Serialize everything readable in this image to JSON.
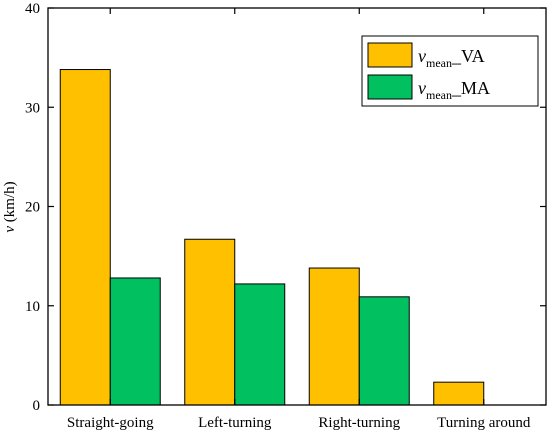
{
  "chart_data": {
    "type": "bar",
    "categories": [
      "Straight-going",
      "Left-turning",
      "Right-turning",
      "Turning around"
    ],
    "series": [
      {
        "name_main": "v",
        "name_sub": "mean",
        "name_suffix": "_VA",
        "color": "#FFC000",
        "values": [
          33.8,
          16.7,
          13.8,
          2.3
        ]
      },
      {
        "name_main": "v",
        "name_sub": "mean",
        "name_suffix": "_MA",
        "color": "#00C060",
        "values": [
          12.8,
          12.2,
          10.9,
          0
        ]
      }
    ],
    "ylabel_var": "v",
    "ylabel_unit": " (km/h)",
    "ylim": [
      0,
      40
    ],
    "yticks": [
      0,
      10,
      20,
      30,
      40
    ],
    "legend_position": "top-right",
    "grid": false
  }
}
